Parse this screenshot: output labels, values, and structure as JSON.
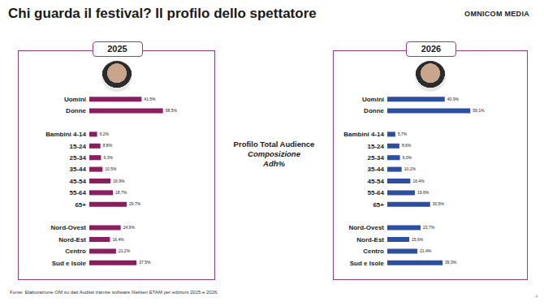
{
  "title": "Chi guarda il festival? Il profilo dello spettatore",
  "brand": "OMNICOM MEDIA",
  "center_text": [
    "Profilo Total Audience",
    "Composizione",
    "Adh%"
  ],
  "source": "Fonte: Elaborazione OM su dati Auditel tramite software Nielsen ETAM per edizioni 2025 e 2026.",
  "page": "4",
  "chart_data": [
    {
      "type": "bar",
      "title": "2025",
      "orientation": "horizontal",
      "data_labels": true,
      "tick_labels": "y",
      "color": "#8b1e5e",
      "xlim": [
        0,
        100
      ],
      "categories": [
        "Uomini",
        "Donne",
        null,
        "Bambini 4-14",
        "15-24",
        "25-34",
        "35-44",
        "45-54",
        "55-64",
        "65+",
        null,
        "Nord-Ovest",
        "Nord-Est",
        "Centro",
        "Sud e Isole"
      ],
      "values": [
        41.5,
        58.5,
        null,
        6.2,
        8.8,
        9.3,
        10.5,
        16.9,
        18.7,
        29.7,
        null,
        24.9,
        16.4,
        21.2,
        37.5
      ],
      "value_labels": [
        "41,5%",
        "58,5%",
        null,
        "6,2%",
        "8,8%",
        "9,3%",
        "10,5%",
        "16,9%",
        "18,7%",
        "29,7%",
        null,
        "24,9%",
        "16,4%",
        "21,2%",
        "37,5%"
      ]
    },
    {
      "type": "bar",
      "title": "2026",
      "orientation": "horizontal",
      "data_labels": true,
      "tick_labels": "y",
      "color": "#2e4fa0",
      "xlim": [
        0,
        100
      ],
      "categories": [
        "Uomini",
        "Donne",
        null,
        "Bambini 4-14",
        "15-24",
        "25-34",
        "35-44",
        "45-54",
        "55-64",
        "65+",
        null,
        "Nord-Ovest",
        "Nord-Est",
        "Centro",
        "Sud e Isole"
      ],
      "values": [
        40.9,
        59.1,
        null,
        5.7,
        8.6,
        9.0,
        10.2,
        16.4,
        19.6,
        30.5,
        null,
        23.7,
        15.6,
        21.4,
        39.3
      ],
      "value_labels": [
        "40,9%",
        "59,1%",
        null,
        "5,7%",
        "8,6%",
        "9,0%",
        "10,2%",
        "16,4%",
        "19,6%",
        "30,5%",
        null,
        "23,7%",
        "15,6%",
        "21,4%",
        "39,3%"
      ]
    }
  ]
}
